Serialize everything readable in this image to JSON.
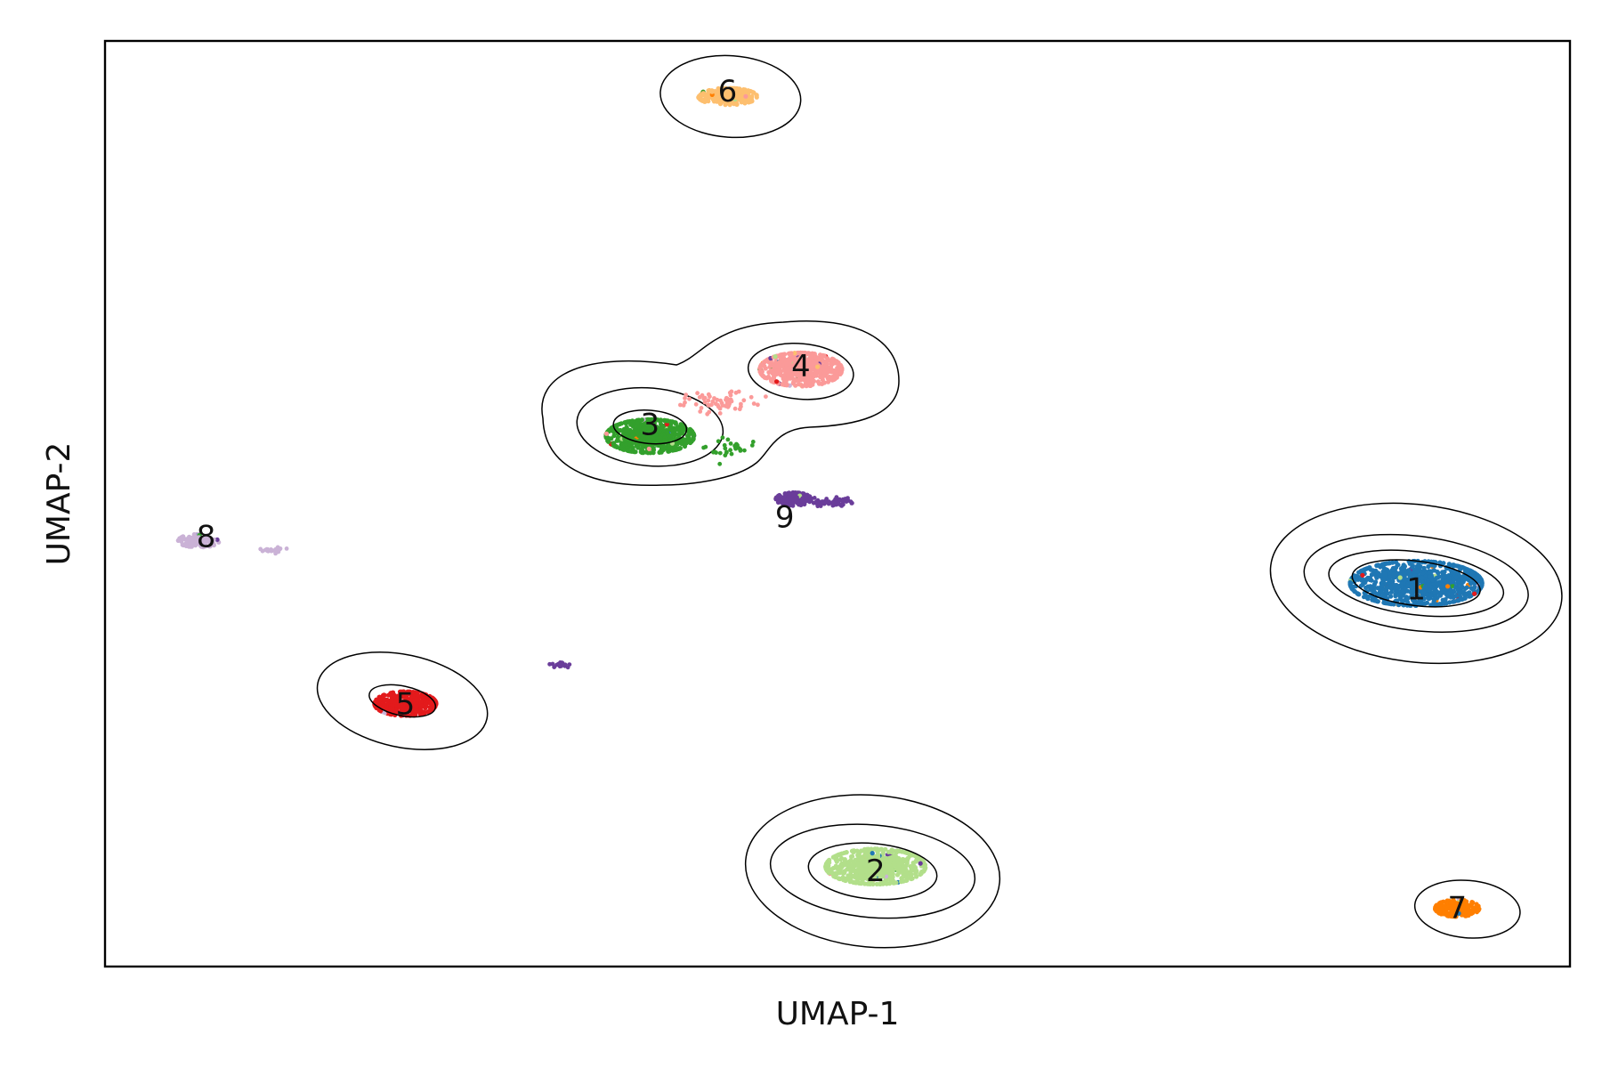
{
  "chart_data": {
    "type": "scatter",
    "xlabel": "UMAP-1",
    "ylabel": "UMAP-2",
    "xlim": [
      0,
      100
    ],
    "ylim": [
      0,
      100
    ],
    "grid": false,
    "legend": "none",
    "ticks": "none",
    "clusters": [
      {
        "label": "1",
        "color": "#1f77b4",
        "center": [
          89.5,
          41.4
        ],
        "spread": [
          4.5,
          2.4
        ],
        "n": 900,
        "label_at": [
          89.5,
          40.7
        ]
      },
      {
        "label": "2",
        "color": "#b2df8a",
        "center": [
          52.6,
          10.8
        ],
        "spread": [
          3.4,
          1.9
        ],
        "n": 600,
        "label_at": [
          52.6,
          10.3
        ]
      },
      {
        "label": "3",
        "color": "#33a02c",
        "center": [
          37.2,
          57.3
        ],
        "spread": [
          3.0,
          1.8
        ],
        "n": 650,
        "label_at": [
          37.2,
          58.5
        ]
      },
      {
        "label": "4",
        "color": "#fb9a99",
        "center": [
          47.5,
          64.5
        ],
        "spread": [
          2.8,
          1.8
        ],
        "n": 550,
        "label_at": [
          47.5,
          64.8
        ]
      },
      {
        "label": "5",
        "color": "#e31a1c",
        "center": [
          20.5,
          28.4
        ],
        "spread": [
          2.1,
          1.3
        ],
        "n": 350,
        "label_at": [
          20.5,
          28.3
        ]
      },
      {
        "label": "6",
        "color": "#fdbf6f",
        "center": [
          42.5,
          94.0
        ],
        "spread": [
          2.0,
          0.9
        ],
        "n": 250,
        "label_at": [
          42.5,
          94.5
        ]
      },
      {
        "label": "7",
        "color": "#ff7f00",
        "center": [
          92.3,
          6.3
        ],
        "spread": [
          1.5,
          0.9
        ],
        "n": 200,
        "label_at": [
          92.3,
          6.3
        ]
      },
      {
        "label": "8",
        "color": "#cab2d6",
        "center": [
          6.4,
          46.0
        ],
        "spread": [
          1.4,
          0.7
        ],
        "n": 120,
        "label_at": [
          6.9,
          46.4
        ]
      },
      {
        "label": "9",
        "color": "#6a3d9a",
        "center": [
          47.0,
          50.5
        ],
        "spread": [
          1.2,
          0.7
        ],
        "n": 150,
        "label_at": [
          46.4,
          48.5
        ]
      }
    ],
    "density_contours": [
      {
        "center": [
          89.5,
          41.4
        ],
        "radii": [
          [
            4.4,
            2.4
          ],
          [
            6.0,
            3.4
          ],
          [
            7.7,
            5.1
          ],
          [
            10.0,
            8.5
          ]
        ],
        "tilt_deg": -7
      },
      {
        "center": [
          52.4,
          10.3
        ],
        "radii": [
          [
            4.4,
            3.0
          ],
          [
            7.0,
            5.0
          ],
          [
            8.7,
            8.2
          ]
        ],
        "tilt_deg": -5
      },
      {
        "center": [
          20.3,
          28.7
        ],
        "radii": [
          [
            2.3,
            1.6
          ],
          [
            5.9,
            5.0
          ]
        ],
        "tilt_deg": -12
      },
      {
        "center": [
          42.7,
          94.0
        ],
        "radii": [
          [
            4.8,
            4.4
          ]
        ],
        "tilt_deg": -4
      },
      {
        "center": [
          93.0,
          6.2
        ],
        "radii": [
          [
            3.6,
            3.1
          ]
        ],
        "tilt_deg": -5
      },
      {
        "center": [
          37.2,
          58.3
        ],
        "radii": [
          [
            2.5,
            1.8
          ],
          [
            5.0,
            4.2
          ]
        ],
        "tilt_deg": -5
      },
      {
        "center": [
          47.5,
          64.3
        ],
        "radii": [
          [
            3.6,
            3.0
          ]
        ],
        "tilt_deg": -5
      }
    ]
  }
}
